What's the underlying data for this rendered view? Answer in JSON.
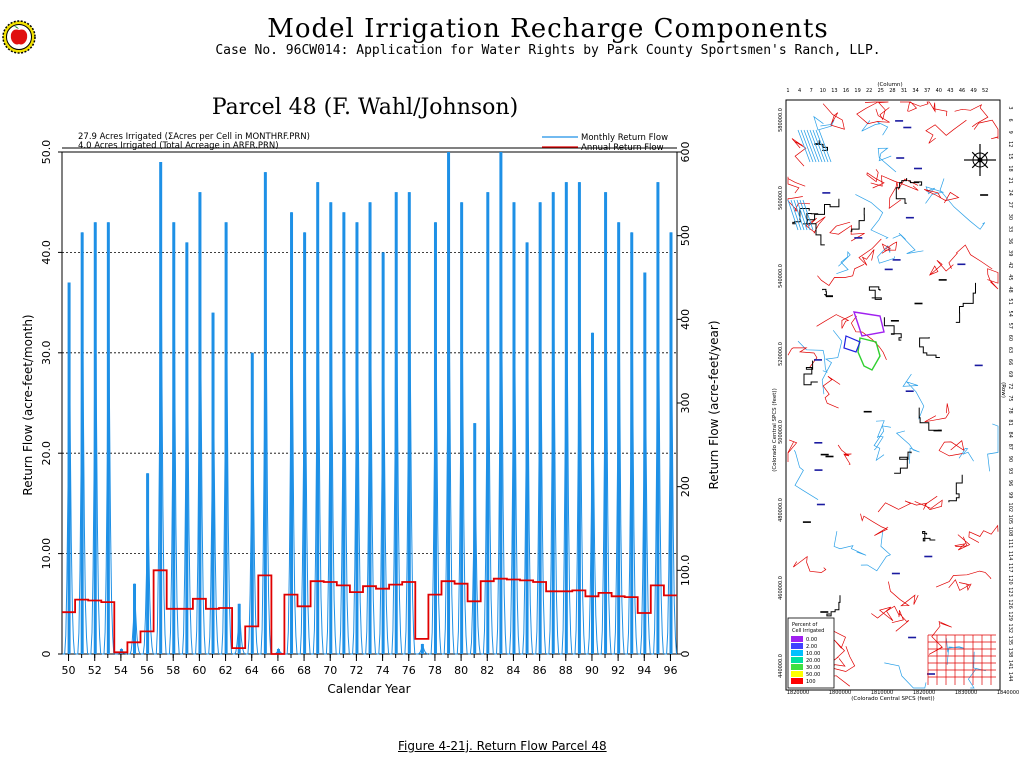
{
  "header": {
    "title": "Model  Irrigation  Recharge  Components",
    "subtitle": "Case No. 96CW014: Application for Water Rights by Park County Sportsmen's Ranch, LLP."
  },
  "caption": "Figure  4-21j.   Return Flow Parcel  48",
  "chart_data": {
    "type": "line",
    "title": "Parcel  48  (F. Wahl/Johnson)",
    "notes": [
      "27.9  Acres Irrigated (ΣAcres per Cell in MONTHRF.PRN)",
      "4.0  Acres Irrigated (Total Acreage in ARFR.PRN)"
    ],
    "xlabel": "Calendar Year",
    "ylabel": "Return Flow (acre-feet/month)",
    "y2label": "Return Flow (acre-feet/year)",
    "xlim": [
      1949.5,
      1996.5
    ],
    "ylim": [
      0,
      50
    ],
    "y2lim": [
      0,
      600
    ],
    "x_ticks": [
      "50",
      "52",
      "54",
      "56",
      "58",
      "60",
      "62",
      "64",
      "66",
      "68",
      "70",
      "72",
      "74",
      "76",
      "78",
      "80",
      "82",
      "84",
      "86",
      "88",
      "90",
      "92",
      "94",
      "96"
    ],
    "y_ticks": [
      "0",
      "10.00",
      "20.0",
      "30.0",
      "40.0",
      "50.0"
    ],
    "y2_ticks": [
      "0",
      "100.0",
      "200",
      "300",
      "400",
      "500",
      "600"
    ],
    "grid": "dashed horizontal at 10, 20, 30, 40, 50",
    "legend_position": "top-right",
    "legend": [
      "Monthly Return Flow",
      "Annual Return Flow"
    ],
    "colors": {
      "monthly": "#1e90e6",
      "annual": "#e00000",
      "axis": "#000000"
    },
    "series": [
      {
        "name": "Monthly Return Flow",
        "axis": "left",
        "x": [
          1950,
          1951,
          1952,
          1953,
          1954,
          1955,
          1956,
          1957,
          1958,
          1959,
          1960,
          1961,
          1962,
          1963,
          1964,
          1965,
          1966,
          1967,
          1968,
          1969,
          1970,
          1971,
          1972,
          1973,
          1974,
          1975,
          1976,
          1977,
          1978,
          1979,
          1980,
          1981,
          1982,
          1983,
          1984,
          1985,
          1986,
          1987,
          1988,
          1989,
          1990,
          1991,
          1992,
          1993,
          1994,
          1995,
          1996
        ],
        "values": [
          37,
          42,
          43,
          43,
          0.5,
          7,
          18,
          49,
          43,
          41,
          46,
          34,
          43,
          5,
          30,
          48,
          0.5,
          44,
          42,
          47,
          45,
          44,
          43,
          45,
          40,
          46,
          46,
          1,
          43,
          50,
          45,
          23,
          46,
          50,
          45,
          41,
          45,
          46,
          47,
          47,
          32,
          46,
          43,
          42,
          38,
          47,
          42
        ]
      },
      {
        "name": "Annual Return Flow",
        "axis": "right",
        "x": [
          1950,
          1951,
          1952,
          1953,
          1954,
          1955,
          1956,
          1957,
          1958,
          1959,
          1960,
          1961,
          1962,
          1963,
          1964,
          1965,
          1966,
          1967,
          1968,
          1969,
          1970,
          1971,
          1972,
          1973,
          1974,
          1975,
          1976,
          1977,
          1978,
          1979,
          1980,
          1981,
          1982,
          1983,
          1984,
          1985,
          1986,
          1987,
          1988,
          1989,
          1990,
          1991,
          1992,
          1993,
          1994,
          1995,
          1996
        ],
        "values": [
          50,
          65,
          64,
          62,
          2,
          14,
          27,
          100,
          54,
          54,
          66,
          54,
          55,
          7,
          33,
          94,
          0,
          71,
          57,
          87,
          86,
          82,
          74,
          81,
          78,
          83,
          86,
          18,
          71,
          87,
          84,
          63,
          87,
          90,
          89,
          88,
          86,
          75,
          75,
          76,
          69,
          73,
          69,
          68,
          49,
          82,
          70
        ]
      }
    ]
  },
  "map": {
    "col_axis_label": "(Column)",
    "row_axis_label": "(Row)",
    "col_ticks": [
      "1",
      "4",
      "7",
      "10",
      "13",
      "16",
      "19",
      "22",
      "25",
      "28",
      "31",
      "34",
      "37",
      "40",
      "43",
      "46",
      "49",
      "52"
    ],
    "row_ticks": [
      "3",
      "6",
      "9",
      "12",
      "15",
      "18",
      "21",
      "24",
      "27",
      "30",
      "33",
      "36",
      "39",
      "42",
      "45",
      "48",
      "51",
      "54",
      "57",
      "60",
      "63",
      "66",
      "69",
      "72",
      "75",
      "78",
      "81",
      "84",
      "87",
      "90",
      "93",
      "96",
      "99",
      "102",
      "105",
      "108",
      "111",
      "114",
      "117",
      "120",
      "123",
      "126",
      "129",
      "132",
      "135",
      "138",
      "141",
      "144"
    ],
    "x_ticks": [
      "1820000",
      "1800000",
      "1810000",
      "1820000",
      "1830000",
      "1840000"
    ],
    "y_ticks": [
      "580000.0",
      "560000.0",
      "540000.0",
      "520000.0",
      "500000.0",
      "480000.0",
      "460000.0",
      "440000.0"
    ],
    "x_axis_label": "(Colorado Central SPCS (feet))",
    "y_axis_label": "(Colorado Central SPCS (feet))",
    "legend_title": [
      "Percent of",
      "Cell Irrigated"
    ],
    "legend_items": [
      "0.00",
      "2.00",
      "10.00",
      "20.00",
      "30.00",
      "50.00",
      "100"
    ],
    "legend_colors": [
      "#a020f0",
      "#4040ff",
      "#00c0ff",
      "#00e0a0",
      "#40e040",
      "#ffff00",
      "#ff0000"
    ]
  }
}
